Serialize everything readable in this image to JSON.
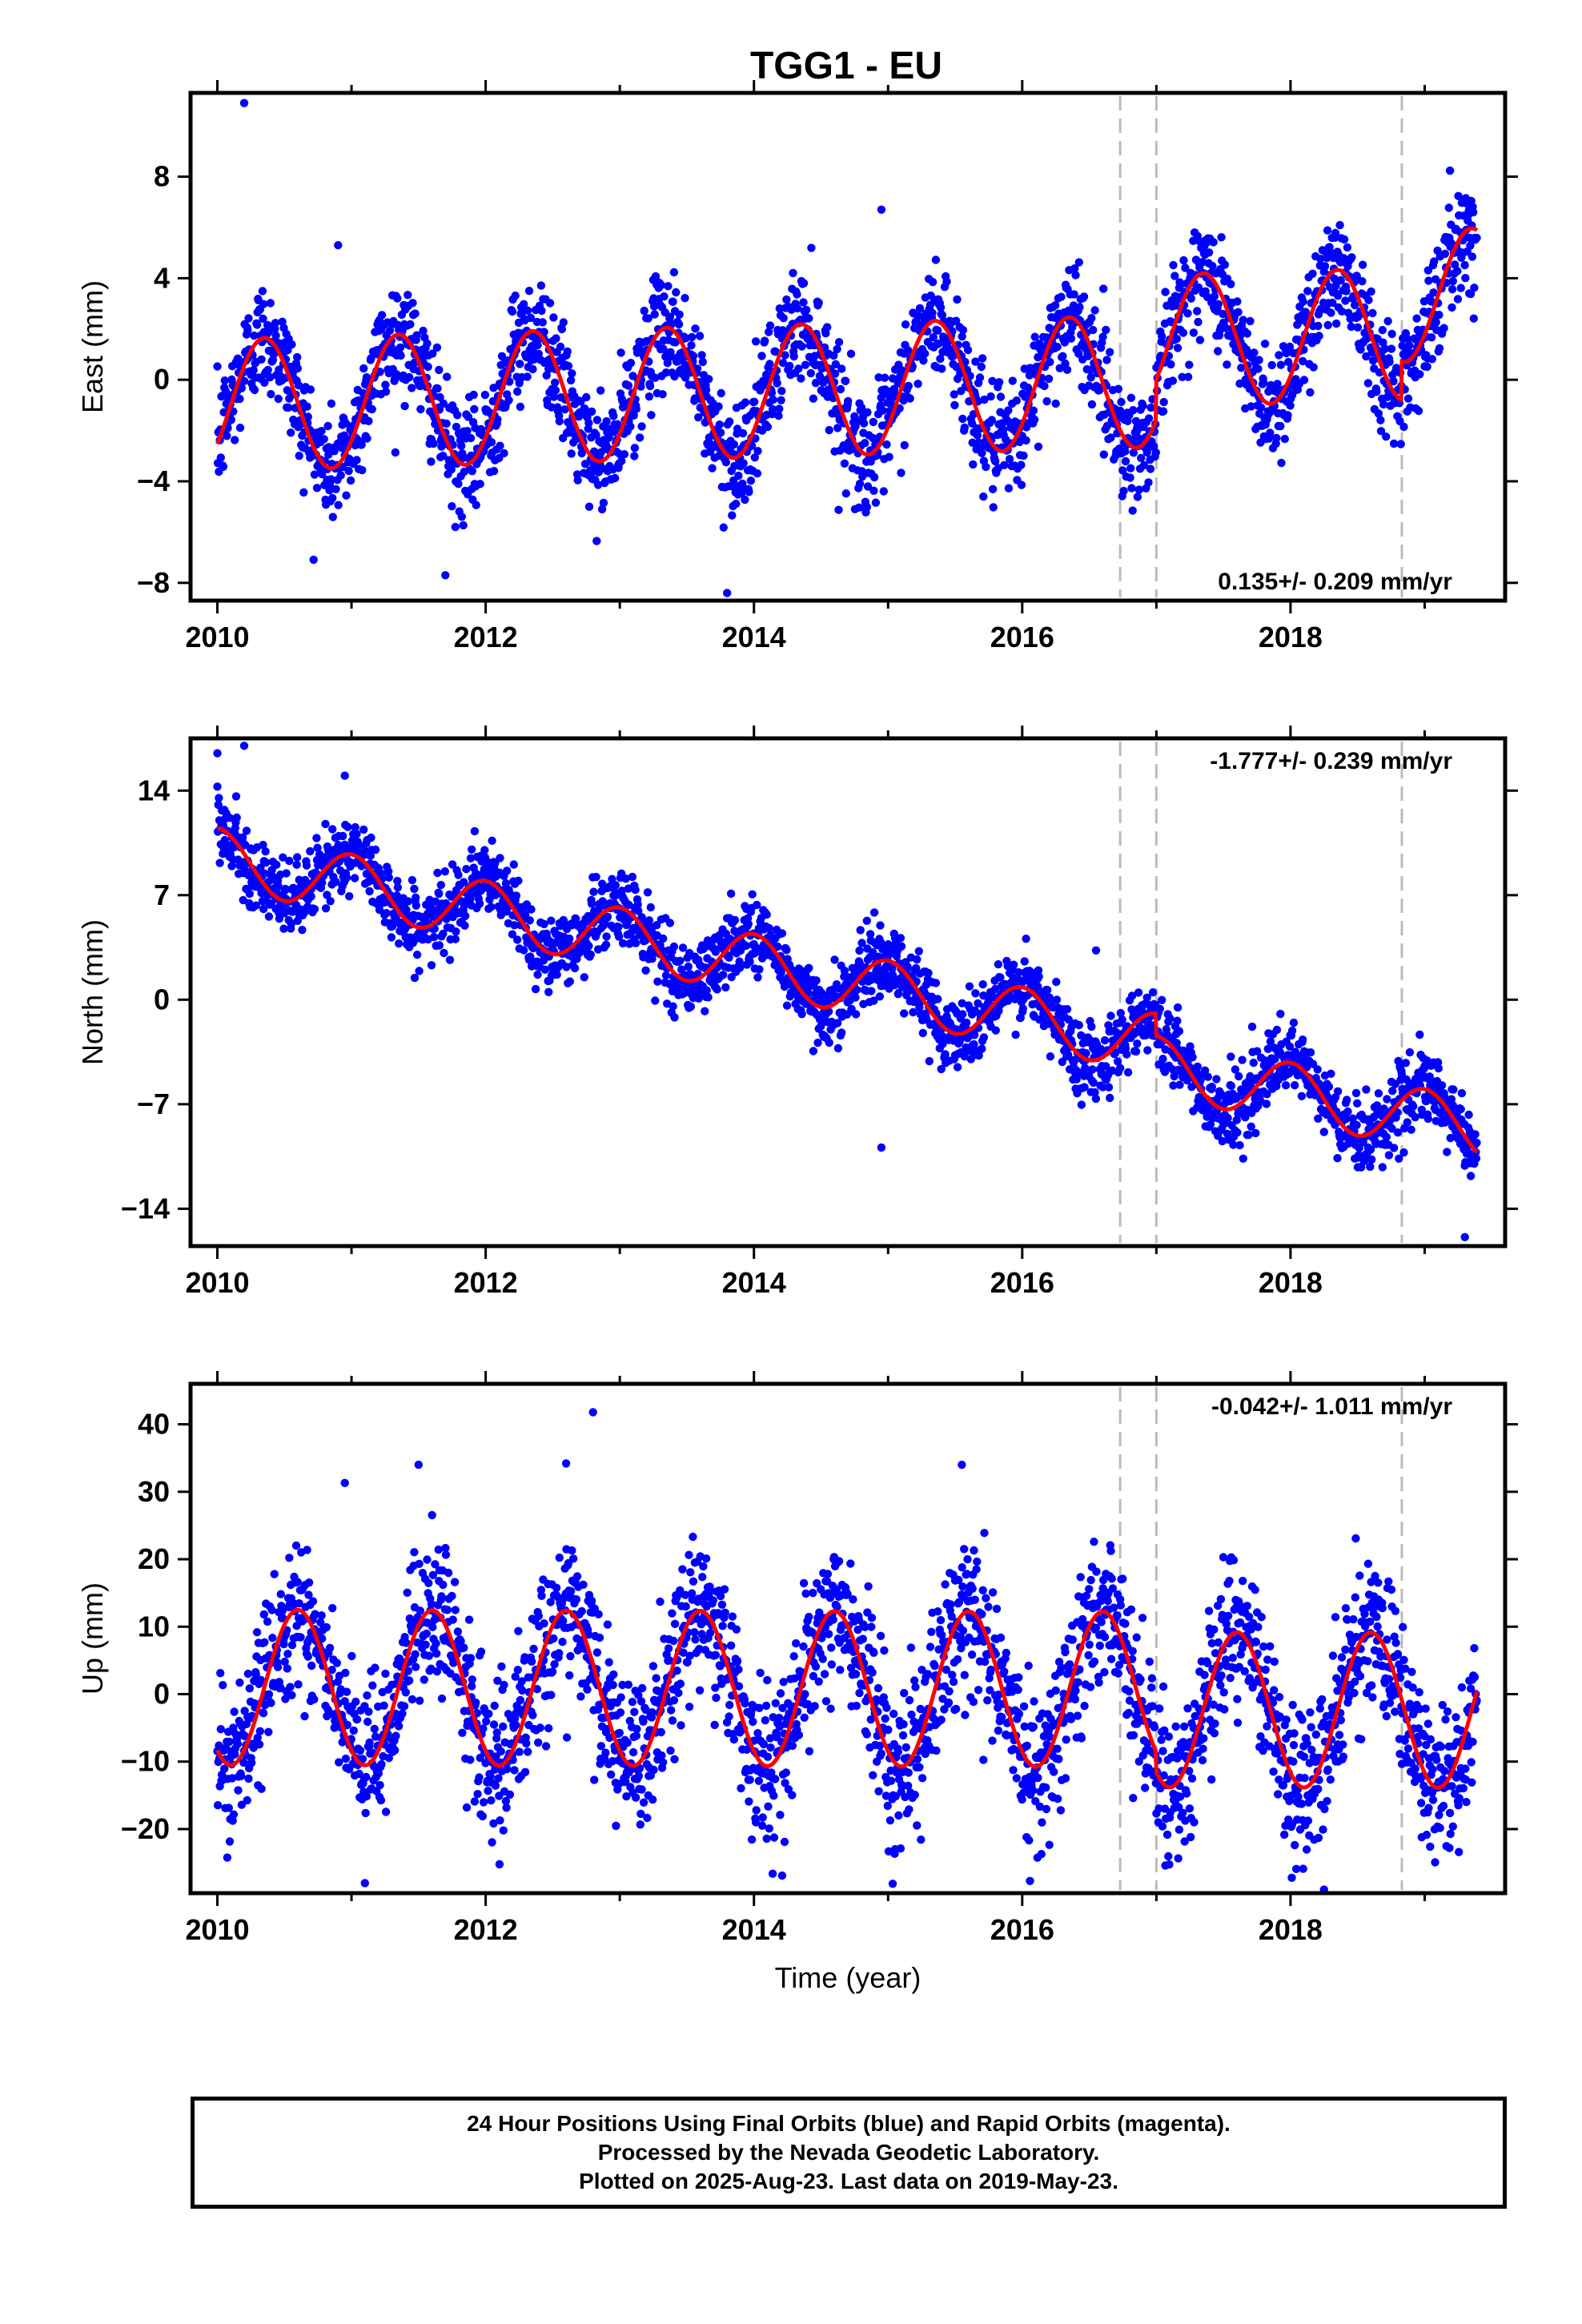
{
  "title": "TGG1 - EU",
  "colors": {
    "data": "#0000ff",
    "model": "#ff0000",
    "offset_line": "#bbbbbb",
    "frame": "#000000"
  },
  "chart_data": [
    {
      "type": "scatter",
      "component": "east",
      "ylabel": "East (mm)",
      "xlabel": "",
      "xlim": [
        2009.8,
        2019.6
      ],
      "ylim": [
        -8.7,
        11.3
      ],
      "yticks": [
        -8,
        -4,
        0,
        4,
        8
      ],
      "xticks": [
        2010,
        2012,
        2014,
        2016,
        2018
      ],
      "rate_label": "0.135+/- 0.209 mm/yr",
      "rate_position": "bottom-right",
      "offsets": [
        2016.73,
        2017.0,
        2018.83
      ],
      "model": {
        "amp_annual": 2.6,
        "phase_year": 0.35,
        "rate": 0.135,
        "mean": -1.0,
        "jumps": [
          [
            2017.0,
            1.6
          ],
          [
            2018.83,
            1.5
          ]
        ]
      },
      "noise_sd": 1.1,
      "outliers": [
        [
          2010.2,
          10.9
        ],
        [
          2013.8,
          -8.4
        ],
        [
          2014.95,
          6.7
        ],
        [
          2010.9,
          5.3
        ],
        [
          2011.7,
          -7.7
        ]
      ],
      "data_range": [
        2010.0,
        2019.39
      ]
    },
    {
      "type": "scatter",
      "component": "north",
      "ylabel": "North (mm)",
      "xlabel": "",
      "xlim": [
        2009.8,
        2019.6
      ],
      "ylim": [
        -16.5,
        17.5
      ],
      "yticks": [
        -14,
        -7,
        0,
        7,
        14
      ],
      "xticks": [
        2010,
        2012,
        2014,
        2016,
        2018
      ],
      "rate_label": "-1.777+/- 0.239 mm/yr",
      "rate_position": "top-right",
      "offsets": [
        2016.73,
        2017.0,
        2018.83
      ],
      "model": {
        "amp_annual": 2.0,
        "phase_year": 0.0,
        "rate": -1.777,
        "mean": 9.5,
        "jumps": [
          [
            2017.0,
            -1.5
          ]
        ]
      },
      "noise_sd": 1.2,
      "outliers": [
        [
          2010.0,
          16.5
        ],
        [
          2010.2,
          17.0
        ],
        [
          2010.95,
          15.0
        ],
        [
          2014.95,
          -9.9
        ],
        [
          2016.55,
          3.3
        ],
        [
          2019.3,
          -15.9
        ]
      ],
      "data_range": [
        2010.0,
        2019.39
      ]
    },
    {
      "type": "scatter",
      "component": "up",
      "ylabel": "Up (mm)",
      "xlabel": "Time (year)",
      "xlim": [
        2009.8,
        2019.6
      ],
      "ylim": [
        -29.5,
        46
      ],
      "yticks": [
        -20,
        -10,
        0,
        10,
        20,
        30,
        40
      ],
      "xticks": [
        2010,
        2012,
        2014,
        2016,
        2018
      ],
      "rate_label": "-0.042+/- 1.011 mm/yr",
      "rate_position": "top-right",
      "offsets": [
        2016.73,
        2017.0,
        2018.83
      ],
      "model": {
        "amp_annual": 11.5,
        "phase_year": 0.6,
        "rate": -0.042,
        "mean": 1.0,
        "jumps": [
          [
            2017.0,
            -3.0
          ]
        ]
      },
      "noise_sd": 5.5,
      "outliers": [
        [
          2012.8,
          41.8
        ],
        [
          2011.5,
          34.0
        ],
        [
          2015.55,
          34.0
        ],
        [
          2012.6,
          34.2
        ],
        [
          2010.95,
          31.3
        ],
        [
          2011.1,
          -28.0
        ]
      ],
      "data_range": [
        2010.0,
        2019.39
      ]
    }
  ],
  "footer": {
    "line1": "24 Hour Positions Using Final Orbits (blue) and Rapid Orbits (magenta).",
    "line2": "Processed by the Nevada Geodetic Laboratory.",
    "line3": "Plotted on 2025-Aug-23. Last data on 2019-May-23."
  }
}
